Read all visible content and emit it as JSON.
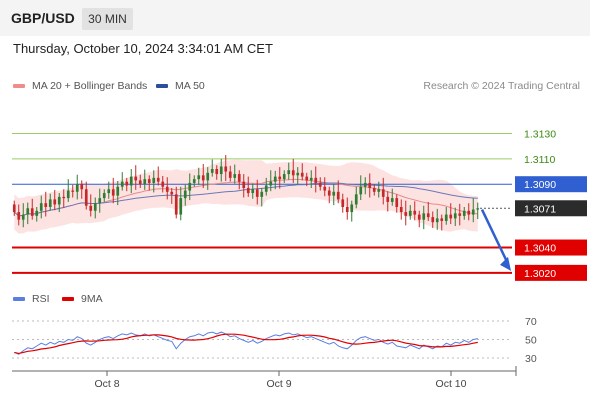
{
  "header": {
    "pair": "GBP/USD",
    "timeframe": "30 MIN",
    "datetime": "Thursday, October 10, 2024 3:34:01 AM CET",
    "credit": "Research © 2024 Trading Central"
  },
  "legend": {
    "ma20": "MA 20 + Bollinger Bands",
    "ma50": "MA 50",
    "rsi": "RSI",
    "ma9": "9MA"
  },
  "colors": {
    "up": "#2e7d32",
    "down": "#c62828",
    "band": "#fde2e2",
    "ma20": "#e88a8a",
    "ma50": "#6a78b8",
    "resistance": "#9ccc65",
    "pivot": "#2f5fd0",
    "support": "#e00000",
    "rsi": "#5b7fe0",
    "ma9": "#e00000"
  },
  "chart_data": {
    "type": "candlestick",
    "ylim": [
      1.3012,
      1.3147
    ],
    "x_labels": [
      "Oct 8",
      "Oct 9",
      "Oct 10"
    ],
    "current_price": 1.3071,
    "levels": [
      {
        "label": "1.3130",
        "value": 1.313,
        "kind": "resistance"
      },
      {
        "label": "1.3110",
        "value": 1.311,
        "kind": "resistance"
      },
      {
        "label": "1.3090",
        "value": 1.309,
        "kind": "pivot"
      },
      {
        "label": "1.3071",
        "value": 1.3071,
        "kind": "current"
      },
      {
        "label": "1.3040",
        "value": 1.304,
        "kind": "support"
      },
      {
        "label": "1.3020",
        "value": 1.302,
        "kind": "support"
      }
    ],
    "forecast": {
      "from": 1.307,
      "to": 1.302
    },
    "closes": [
      1.3068,
      1.3062,
      1.3066,
      1.3071,
      1.3065,
      1.3069,
      1.3075,
      1.3072,
      1.3078,
      1.3074,
      1.308,
      1.3079,
      1.3085,
      1.3084,
      1.309,
      1.3086,
      1.3073,
      1.3069,
      1.3075,
      1.3079,
      1.3083,
      1.3086,
      1.3081,
      1.3088,
      1.3092,
      1.3089,
      1.3096,
      1.3093,
      1.309,
      1.3094,
      1.3091,
      1.3095,
      1.3092,
      1.3088,
      1.3084,
      1.3082,
      1.3066,
      1.3079,
      1.3085,
      1.3091,
      1.3094,
      1.3097,
      1.3093,
      1.3099,
      1.3102,
      1.3098,
      1.3104,
      1.31,
      1.3095,
      1.3098,
      1.3092,
      1.3087,
      1.3083,
      1.3086,
      1.308,
      1.3084,
      1.3089,
      1.3092,
      1.3096,
      1.3094,
      1.3098,
      1.3101,
      1.3097,
      1.3099,
      1.3096,
      1.3093,
      1.3095,
      1.3091,
      1.3088,
      1.3085,
      1.3081,
      1.3084,
      1.3078,
      1.3072,
      1.3068,
      1.3074,
      1.3082,
      1.3088,
      1.3091,
      1.3087,
      1.3084,
      1.3086,
      1.308,
      1.3076,
      1.3079,
      1.3072,
      1.3068,
      1.3065,
      1.3069,
      1.3066,
      1.3062,
      1.3067,
      1.3064,
      1.306,
      1.3063,
      1.3061,
      1.3066,
      1.3063,
      1.3067,
      1.3065,
      1.3069,
      1.3066,
      1.307,
      1.3071
    ],
    "rsi": [
      36,
      34,
      38,
      41,
      40,
      43,
      46,
      44,
      47,
      45,
      48,
      47,
      50,
      49,
      53,
      51,
      46,
      44,
      47,
      50,
      52,
      53,
      51,
      54,
      56,
      55,
      57,
      55,
      54,
      56,
      54,
      55,
      53,
      51,
      49,
      48,
      40,
      46,
      50,
      53,
      54,
      56,
      54,
      57,
      58,
      56,
      58,
      56,
      53,
      54,
      51,
      49,
      47,
      49,
      46,
      48,
      51,
      53,
      55,
      54,
      56,
      57,
      55,
      56,
      54,
      52,
      53,
      51,
      49,
      47,
      45,
      47,
      43,
      41,
      40,
      44,
      49,
      52,
      53,
      51,
      49,
      50,
      47,
      45,
      47,
      43,
      42,
      41,
      44,
      42,
      40,
      44,
      42,
      40,
      43,
      42,
      46,
      44,
      47,
      46,
      49,
      47,
      50,
      51
    ],
    "rsi_ticks": [
      30,
      50,
      70
    ]
  }
}
